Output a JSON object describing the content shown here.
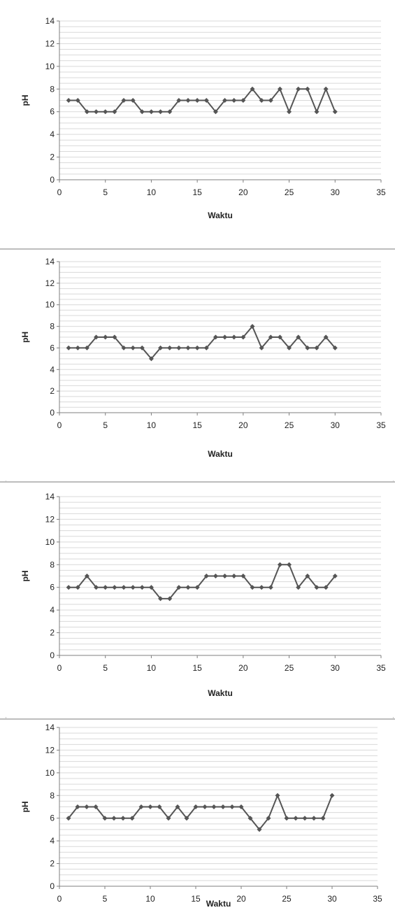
{
  "chart_data": [
    {
      "type": "line",
      "xlabel": "Waktu",
      "ylabel": "pH",
      "xlim": [
        0,
        35
      ],
      "ylim": [
        0,
        14
      ],
      "xticks": [
        0,
        5,
        10,
        15,
        20,
        25,
        30,
        35
      ],
      "yticks": [
        0,
        2,
        4,
        6,
        8,
        10,
        12,
        14
      ],
      "grid": "horizontal minor",
      "legend": "none",
      "series": [
        {
          "x": [
            1,
            2,
            3,
            4,
            5,
            6,
            7,
            8,
            9,
            10,
            11,
            12,
            13,
            14,
            15,
            16,
            17,
            18,
            19,
            20,
            21,
            22,
            23,
            24,
            25,
            26,
            27,
            28,
            29,
            30
          ],
          "values": [
            7,
            7,
            6,
            6,
            6,
            6,
            7,
            7,
            6,
            6,
            6,
            6,
            7,
            7,
            7,
            7,
            6,
            7,
            7,
            7,
            8,
            7,
            7,
            8,
            6,
            8,
            8,
            6,
            8,
            6
          ]
        }
      ]
    },
    {
      "type": "line",
      "xlabel": "Waktu",
      "ylabel": "pH",
      "xlim": [
        0,
        35
      ],
      "ylim": [
        0,
        14
      ],
      "xticks": [
        0,
        5,
        10,
        15,
        20,
        25,
        30,
        35
      ],
      "yticks": [
        0,
        2,
        4,
        6,
        8,
        10,
        12,
        14
      ],
      "grid": "horizontal minor",
      "legend": "none",
      "series": [
        {
          "x": [
            1,
            2,
            3,
            4,
            5,
            6,
            7,
            8,
            9,
            10,
            11,
            12,
            13,
            14,
            15,
            16,
            17,
            18,
            19,
            20,
            21,
            22,
            23,
            24,
            25,
            26,
            27,
            28,
            29,
            30
          ],
          "values": [
            6,
            6,
            6,
            7,
            7,
            7,
            6,
            6,
            6,
            5,
            6,
            6,
            6,
            6,
            6,
            6,
            7,
            7,
            7,
            7,
            8,
            6,
            7,
            7,
            6,
            7,
            6,
            6,
            7,
            6
          ]
        }
      ]
    },
    {
      "type": "line",
      "xlabel": "Waktu",
      "ylabel": "pH",
      "xlim": [
        0,
        35
      ],
      "ylim": [
        0,
        14
      ],
      "xticks": [
        0,
        5,
        10,
        15,
        20,
        25,
        30,
        35
      ],
      "yticks": [
        0,
        2,
        4,
        6,
        8,
        10,
        12,
        14
      ],
      "grid": "horizontal minor",
      "legend": "none",
      "series": [
        {
          "x": [
            1,
            2,
            3,
            4,
            5,
            6,
            7,
            8,
            9,
            10,
            11,
            12,
            13,
            14,
            15,
            16,
            17,
            18,
            19,
            20,
            21,
            22,
            23,
            24,
            25,
            26,
            27,
            28,
            29,
            30
          ],
          "values": [
            6,
            6,
            7,
            6,
            6,
            6,
            6,
            6,
            6,
            6,
            5,
            5,
            6,
            6,
            6,
            7,
            7,
            7,
            7,
            7,
            6,
            6,
            6,
            8,
            8,
            6,
            7,
            6,
            6,
            7
          ]
        }
      ]
    },
    {
      "type": "line",
      "xlabel": "Waktu",
      "ylabel": "pH",
      "xlim": [
        0,
        35
      ],
      "ylim": [
        0,
        14
      ],
      "xticks": [
        0,
        5,
        10,
        15,
        20,
        25,
        30,
        35
      ],
      "yticks": [
        0,
        2,
        4,
        6,
        8,
        10,
        12,
        14
      ],
      "grid": "horizontal minor",
      "legend": "none",
      "series": [
        {
          "x": [
            1,
            2,
            3,
            4,
            5,
            6,
            7,
            8,
            9,
            10,
            11,
            12,
            13,
            14,
            15,
            16,
            17,
            18,
            19,
            20,
            21,
            22,
            23,
            24,
            25,
            26,
            27,
            28,
            29,
            30
          ],
          "values": [
            6,
            7,
            7,
            7,
            6,
            6,
            6,
            6,
            7,
            7,
            7,
            6,
            7,
            6,
            7,
            7,
            7,
            7,
            7,
            7,
            6,
            5,
            6,
            8,
            6,
            6,
            6,
            6,
            6,
            8
          ]
        }
      ]
    }
  ],
  "style": {
    "line_color": "#555555",
    "marker_color": "#555555",
    "axis_color": "#7f7f7f",
    "grid_color": "#d9d9d9",
    "text_color": "#222222",
    "divider_color": "#bdbdbd"
  }
}
